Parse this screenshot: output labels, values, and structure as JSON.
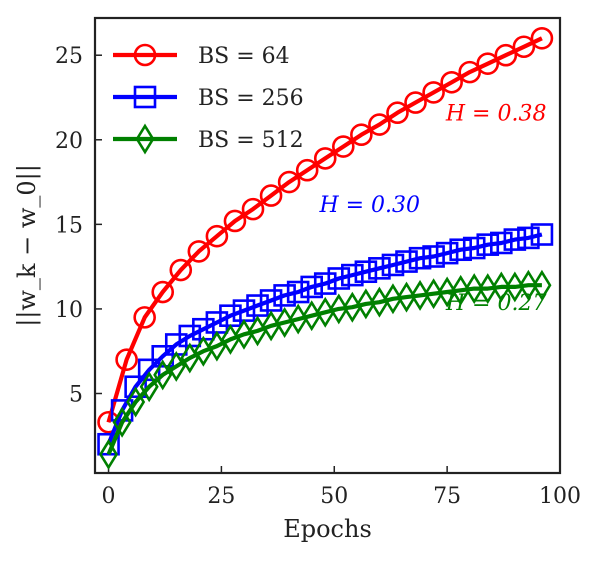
{
  "chart_data": {
    "type": "line",
    "xlabel": "Epochs",
    "ylabel": "||w_k − w_0||",
    "xlim": [
      -3,
      100
    ],
    "ylim": [
      0.3,
      27.2
    ],
    "xticks": [
      0,
      25,
      50,
      75,
      100
    ],
    "yticks": [
      5,
      10,
      15,
      20,
      25
    ],
    "grid": false,
    "legend_position": "top-left",
    "series": [
      {
        "name": "BS = 64",
        "color": "#ff0000",
        "marker": "circle",
        "x": [
          0,
          4,
          8,
          12,
          16,
          20,
          24,
          28,
          32,
          36,
          40,
          44,
          48,
          52,
          56,
          60,
          64,
          68,
          72,
          76,
          80,
          84,
          88,
          92,
          96
        ],
        "y": [
          3.3,
          7.0,
          9.5,
          11.0,
          12.3,
          13.4,
          14.3,
          15.2,
          15.9,
          16.7,
          17.5,
          18.2,
          18.9,
          19.6,
          20.3,
          20.9,
          21.6,
          22.2,
          22.8,
          23.4,
          24.0,
          24.5,
          25.0,
          25.5,
          26.0
        ]
      },
      {
        "name": "BS = 256",
        "color": "#0000ff",
        "marker": "square",
        "x": [
          0,
          3,
          6,
          9,
          12,
          15,
          18,
          21,
          24,
          27,
          30,
          33,
          36,
          39,
          42,
          45,
          48,
          51,
          54,
          57,
          60,
          63,
          66,
          69,
          72,
          75,
          78,
          81,
          84,
          87,
          90,
          93,
          96
        ],
        "y": [
          2.0,
          4.0,
          5.4,
          6.4,
          7.2,
          7.9,
          8.4,
          8.8,
          9.2,
          9.6,
          9.9,
          10.2,
          10.5,
          10.8,
          11.0,
          11.3,
          11.5,
          11.8,
          12.0,
          12.2,
          12.4,
          12.6,
          12.8,
          13.0,
          13.1,
          13.3,
          13.5,
          13.6,
          13.8,
          13.9,
          14.1,
          14.2,
          14.4
        ]
      },
      {
        "name": "BS = 512",
        "color": "#008000",
        "marker": "diamond",
        "x": [
          0,
          3,
          6,
          9,
          12,
          15,
          18,
          21,
          24,
          27,
          30,
          33,
          36,
          39,
          42,
          45,
          48,
          51,
          54,
          57,
          60,
          63,
          66,
          69,
          72,
          75,
          78,
          81,
          84,
          87,
          90,
          93,
          96
        ],
        "y": [
          1.4,
          3.3,
          4.5,
          5.4,
          6.1,
          6.6,
          7.1,
          7.5,
          7.8,
          8.2,
          8.5,
          8.7,
          9.0,
          9.2,
          9.4,
          9.6,
          9.8,
          10.0,
          10.1,
          10.3,
          10.4,
          10.6,
          10.7,
          10.8,
          10.9,
          11.0,
          11.1,
          11.2,
          11.2,
          11.3,
          11.3,
          11.4,
          11.4
        ]
      }
    ],
    "annotations": [
      {
        "text": "H = 0.38",
        "color": "#ff0000",
        "x": 97,
        "y": 21.6
      },
      {
        "text": "H = 0.30",
        "color": "#0000ff",
        "x": 69,
        "y": 16.2
      },
      {
        "text": "H = 0.27",
        "color": "#008000",
        "x": 97,
        "y": 10.4
      }
    ]
  }
}
